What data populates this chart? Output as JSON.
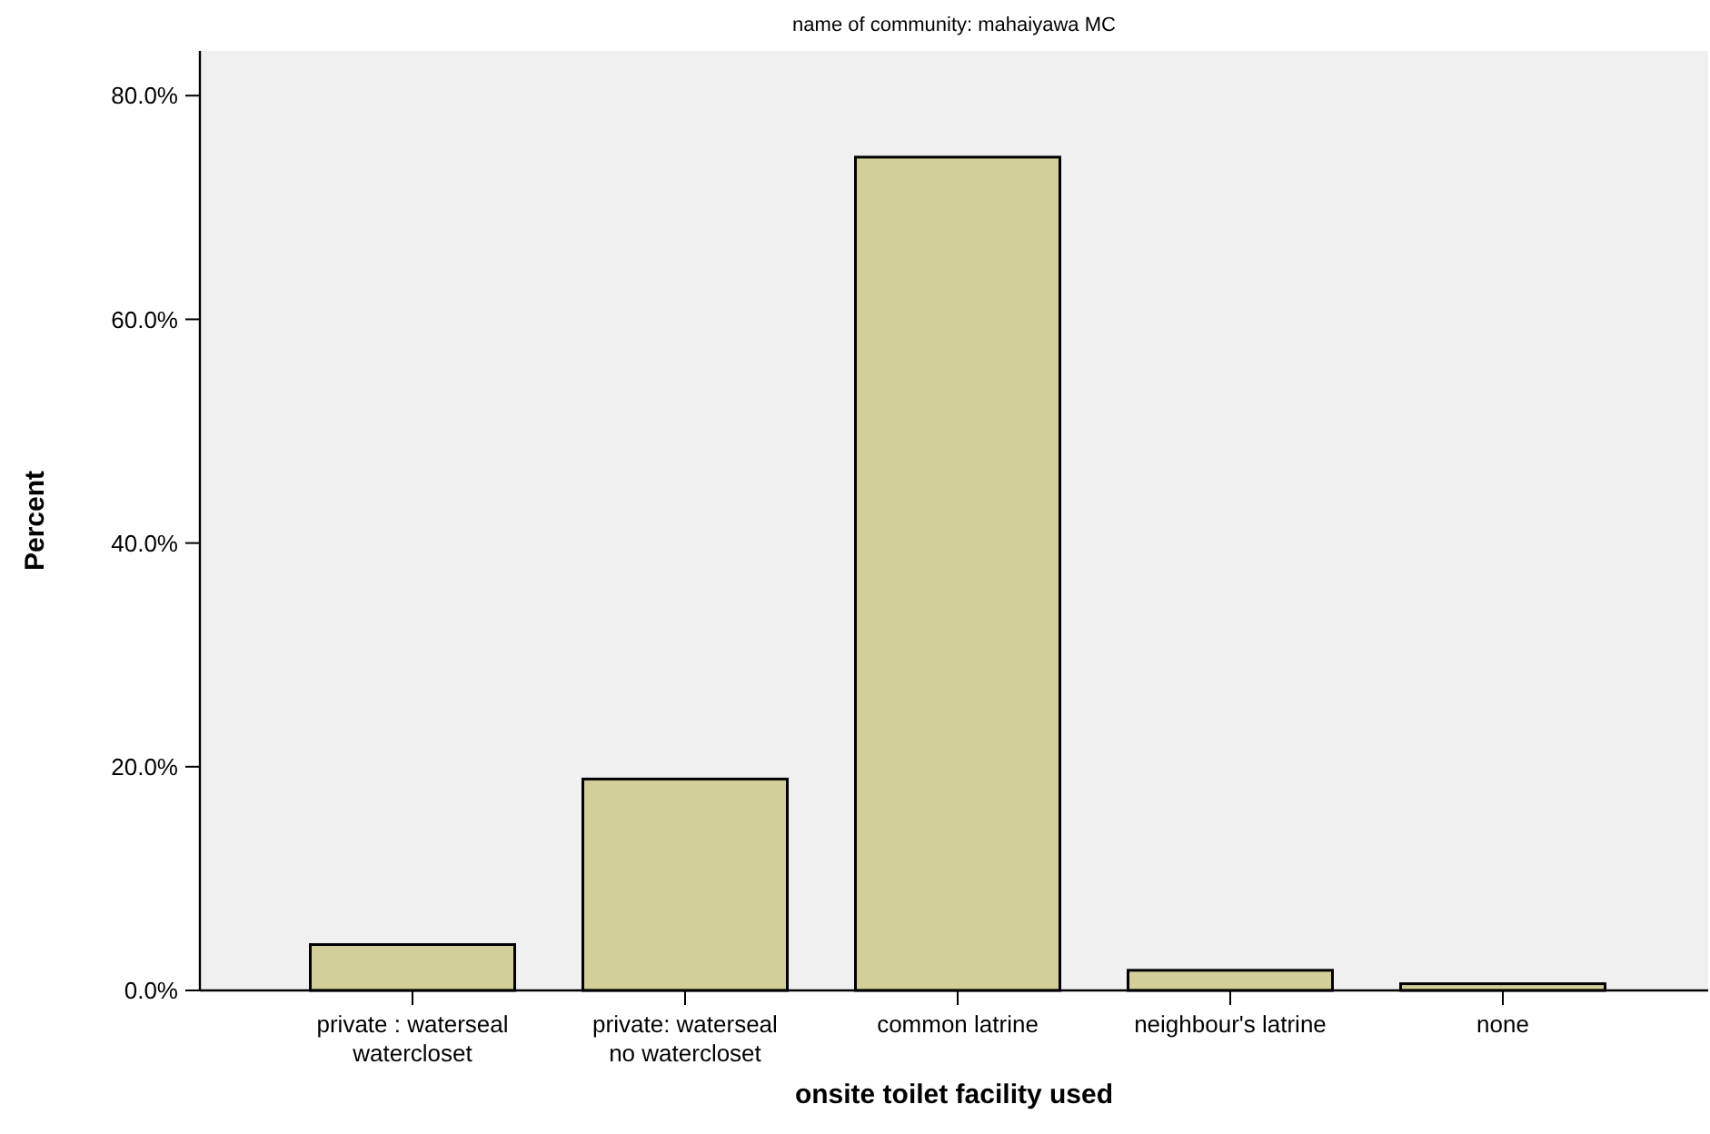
{
  "chart_data": {
    "type": "bar",
    "title": "name of community: mahaiyawa MC",
    "xlabel": "onsite toilet facility used",
    "ylabel": "Percent",
    "categories": [
      "private : waterseal watercloset",
      "private: waterseal no watercloset",
      "common latrine",
      "neighbour's latrine",
      "none"
    ],
    "values": [
      4.1,
      18.9,
      74.5,
      1.8,
      0.6
    ],
    "color": "#d3cf98",
    "ylim": [
      0,
      84
    ],
    "yticks": [
      {
        "value": 0,
        "label": "0.0%"
      },
      {
        "value": 20,
        "label": "20.0%"
      },
      {
        "value": 40,
        "label": "40.0%"
      },
      {
        "value": 60,
        "label": "60.0%"
      },
      {
        "value": 80,
        "label": "80.0%"
      }
    ],
    "grid": false
  }
}
